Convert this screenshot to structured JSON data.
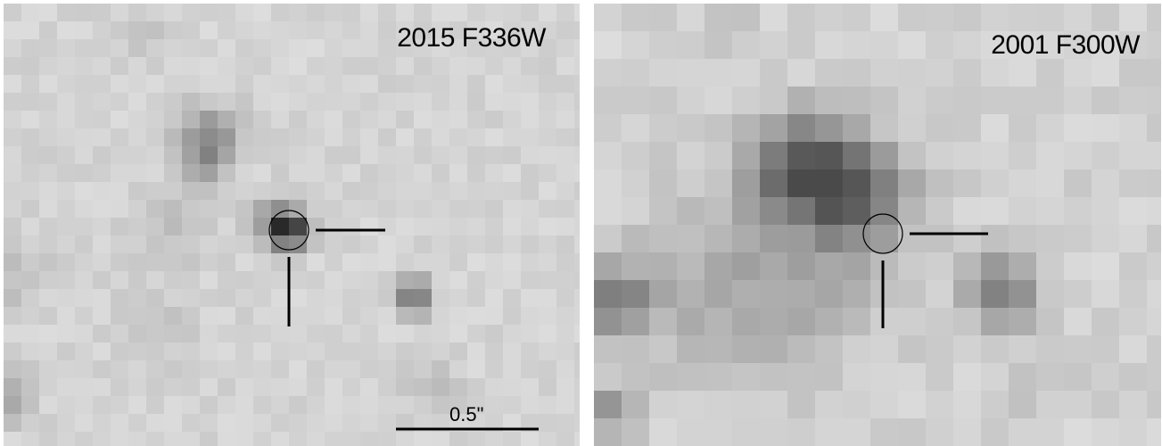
{
  "panels": [
    {
      "label": "2015 F336W",
      "background": "#dadada",
      "cell_size": 20
    },
    {
      "label": "2001 F300W",
      "background": "#dcdcdc",
      "cell_size": 31
    }
  ],
  "scale_bar": {
    "label": "0.5\""
  },
  "marker_color": "#000000"
}
